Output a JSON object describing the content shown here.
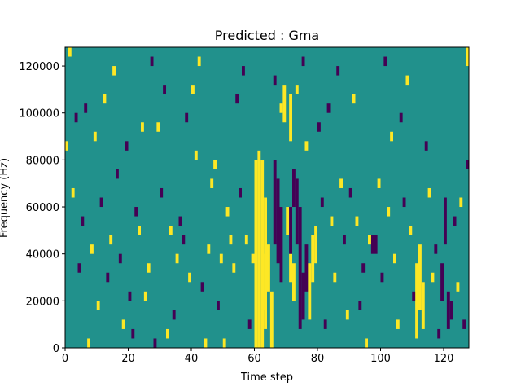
{
  "chart_data": {
    "type": "heatmap",
    "title": "Predicted : Gma",
    "xlabel": "Time step",
    "ylabel": "Frequency (Hz)",
    "xlim": [
      0,
      128
    ],
    "ylim": [
      0,
      128000
    ],
    "x_ticks": [
      0,
      20,
      40,
      60,
      80,
      100,
      120
    ],
    "y_ticks": [
      0,
      20000,
      40000,
      60000,
      80000,
      100000,
      120000
    ],
    "y_tick_labels": [
      "0",
      "20000",
      "40000",
      "60000",
      "80000",
      "100000",
      "120000"
    ],
    "grid": false,
    "colormap": "viridis",
    "colors": {
      "background": "#21918c",
      "high": "#fde725",
      "low": "#440154"
    },
    "value_levels": {
      "background": 0,
      "high": 1,
      "low": -1
    },
    "n_time_steps": 128,
    "n_frequency_bins": 32,
    "frequency_bin_width": 4000,
    "cells": [
      {
        "t": 60,
        "f0": 0,
        "f1": 80000,
        "v": 1
      },
      {
        "t": 61,
        "f0": 0,
        "f1": 84000,
        "v": 1
      },
      {
        "t": 62,
        "f0": 0,
        "f1": 80000,
        "v": 1
      },
      {
        "t": 63,
        "f0": 8000,
        "f1": 64000,
        "v": 1
      },
      {
        "t": 63,
        "f0": 16000,
        "f1": 40000,
        "v": 1
      },
      {
        "t": 64,
        "f0": 24000,
        "f1": 44000,
        "v": 1
      },
      {
        "t": 65,
        "f0": 0,
        "f1": 24000,
        "v": 1
      },
      {
        "t": 66,
        "f0": 44000,
        "f1": 80000,
        "v": -1
      },
      {
        "t": 67,
        "f0": 36000,
        "f1": 72000,
        "v": -1
      },
      {
        "t": 68,
        "f0": 28000,
        "f1": 60000,
        "v": -1
      },
      {
        "t": 70,
        "f0": 48000,
        "f1": 60000,
        "v": 1
      },
      {
        "t": 71,
        "f0": 28000,
        "f1": 40000,
        "v": 1
      },
      {
        "t": 72,
        "f0": 20000,
        "f1": 36000,
        "v": 1
      },
      {
        "t": 71,
        "f0": 40000,
        "f1": 60000,
        "v": -1
      },
      {
        "t": 72,
        "f0": 60000,
        "f1": 76000,
        "v": -1
      },
      {
        "t": 73,
        "f0": 44000,
        "f1": 72000,
        "v": -1
      },
      {
        "t": 74,
        "f0": 8000,
        "f1": 60000,
        "v": -1
      },
      {
        "t": 75,
        "f0": 12000,
        "f1": 32000,
        "v": -1
      },
      {
        "t": 76,
        "f0": 24000,
        "f1": 44000,
        "v": -1
      },
      {
        "t": 77,
        "f0": 12000,
        "f1": 36000,
        "v": 1
      },
      {
        "t": 78,
        "f0": 28000,
        "f1": 48000,
        "v": 1
      },
      {
        "t": 79,
        "f0": 36000,
        "f1": 52000,
        "v": 1
      },
      {
        "t": 71,
        "f0": 88000,
        "f1": 108000,
        "v": 1
      },
      {
        "t": 69,
        "f0": 96000,
        "f1": 112000,
        "v": 1
      },
      {
        "t": 111,
        "f0": 4000,
        "f1": 36000,
        "v": 1
      },
      {
        "t": 112,
        "f0": 16000,
        "f1": 44000,
        "v": 1
      },
      {
        "t": 113,
        "f0": 8000,
        "f1": 28000,
        "v": 1
      },
      {
        "t": 121,
        "f0": 8000,
        "f1": 24000,
        "v": -1
      },
      {
        "t": 122,
        "f0": 12000,
        "f1": 20000,
        "v": -1
      },
      {
        "t": 119,
        "f0": 20000,
        "f1": 36000,
        "v": -1
      },
      {
        "t": 120,
        "f0": 44000,
        "f1": 64000,
        "v": -1
      },
      {
        "t": 97,
        "f0": 40000,
        "f1": 48000,
        "v": -1
      },
      {
        "t": 98,
        "f0": 40000,
        "f1": 48000,
        "v": -1
      },
      {
        "t": 127,
        "f0": 76000,
        "f1": 80000,
        "v": -1
      },
      {
        "t": 127,
        "f0": 120000,
        "f1": 128000,
        "v": 1
      },
      {
        "t": 1,
        "f0": 124000,
        "f1": 128000,
        "v": 1
      },
      {
        "t": 3,
        "f0": 96000,
        "f1": 100000,
        "v": -1
      },
      {
        "t": 4,
        "f0": 32000,
        "f1": 36000,
        "v": -1
      },
      {
        "t": 7,
        "f0": 0,
        "f1": 4000,
        "v": 1
      },
      {
        "t": 10,
        "f0": 16000,
        "f1": 20000,
        "v": 1
      },
      {
        "t": 12,
        "f0": 104000,
        "f1": 108000,
        "v": 1
      },
      {
        "t": 16,
        "f0": 72000,
        "f1": 76000,
        "v": -1
      },
      {
        "t": 18,
        "f0": 8000,
        "f1": 12000,
        "v": 1
      },
      {
        "t": 20,
        "f0": 20000,
        "f1": 24000,
        "v": -1
      },
      {
        "t": 24,
        "f0": 92000,
        "f1": 96000,
        "v": 1
      },
      {
        "t": 27,
        "f0": 120000,
        "f1": 124000,
        "v": -1
      },
      {
        "t": 28,
        "f0": 0,
        "f1": 4000,
        "v": -1
      },
      {
        "t": 31,
        "f0": 108000,
        "f1": 112000,
        "v": -1
      },
      {
        "t": 33,
        "f0": 48000,
        "f1": 52000,
        "v": 1
      },
      {
        "t": 35,
        "f0": 36000,
        "f1": 40000,
        "v": 1
      },
      {
        "t": 37,
        "f0": 44000,
        "f1": 48000,
        "v": -1
      },
      {
        "t": 39,
        "f0": 28000,
        "f1": 32000,
        "v": 1
      },
      {
        "t": 41,
        "f0": 80000,
        "f1": 84000,
        "v": 1
      },
      {
        "t": 42,
        "f0": 120000,
        "f1": 124000,
        "v": 1
      },
      {
        "t": 44,
        "f0": 0,
        "f1": 4000,
        "v": 1
      },
      {
        "t": 46,
        "f0": 68000,
        "f1": 72000,
        "v": 1
      },
      {
        "t": 48,
        "f0": 16000,
        "f1": 20000,
        "v": -1
      },
      {
        "t": 49,
        "f0": 36000,
        "f1": 40000,
        "v": 1
      },
      {
        "t": 51,
        "f0": 56000,
        "f1": 60000,
        "v": 1
      },
      {
        "t": 54,
        "f0": 104000,
        "f1": 108000,
        "v": -1
      },
      {
        "t": 56,
        "f0": 116000,
        "f1": 120000,
        "v": -1
      },
      {
        "t": 57,
        "f0": 44000,
        "f1": 48000,
        "v": 1
      },
      {
        "t": 58,
        "f0": 8000,
        "f1": 12000,
        "v": -1
      },
      {
        "t": 66,
        "f0": 112000,
        "f1": 116000,
        "v": -1
      },
      {
        "t": 68,
        "f0": 100000,
        "f1": 104000,
        "v": 1
      },
      {
        "t": 73,
        "f0": 108000,
        "f1": 112000,
        "v": 1
      },
      {
        "t": 75,
        "f0": 120000,
        "f1": 124000,
        "v": -1
      },
      {
        "t": 76,
        "f0": 84000,
        "f1": 88000,
        "v": 1
      },
      {
        "t": 80,
        "f0": 92000,
        "f1": 96000,
        "v": -1
      },
      {
        "t": 82,
        "f0": 8000,
        "f1": 12000,
        "v": -1
      },
      {
        "t": 84,
        "f0": 52000,
        "f1": 56000,
        "v": 1
      },
      {
        "t": 85,
        "f0": 28000,
        "f1": 32000,
        "v": 1
      },
      {
        "t": 86,
        "f0": 116000,
        "f1": 120000,
        "v": -1
      },
      {
        "t": 87,
        "f0": 68000,
        "f1": 72000,
        "v": 1
      },
      {
        "t": 89,
        "f0": 12000,
        "f1": 16000,
        "v": 1
      },
      {
        "t": 91,
        "f0": 104000,
        "f1": 108000,
        "v": 1
      },
      {
        "t": 92,
        "f0": 52000,
        "f1": 56000,
        "v": 1
      },
      {
        "t": 94,
        "f0": 32000,
        "f1": 36000,
        "v": -1
      },
      {
        "t": 95,
        "f0": 0,
        "f1": 4000,
        "v": 1
      },
      {
        "t": 96,
        "f0": 44000,
        "f1": 48000,
        "v": 1
      },
      {
        "t": 99,
        "f0": 68000,
        "f1": 72000,
        "v": 1
      },
      {
        "t": 100,
        "f0": 28000,
        "f1": 32000,
        "v": -1
      },
      {
        "t": 101,
        "f0": 120000,
        "f1": 124000,
        "v": -1
      },
      {
        "t": 103,
        "f0": 88000,
        "f1": 92000,
        "v": 1
      },
      {
        "t": 105,
        "f0": 8000,
        "f1": 12000,
        "v": 1
      },
      {
        "t": 107,
        "f0": 60000,
        "f1": 64000,
        "v": -1
      },
      {
        "t": 108,
        "f0": 112000,
        "f1": 116000,
        "v": 1
      },
      {
        "t": 110,
        "f0": 20000,
        "f1": 24000,
        "v": -1
      },
      {
        "t": 115,
        "f0": 64000,
        "f1": 68000,
        "v": 1
      },
      {
        "t": 117,
        "f0": 40000,
        "f1": 44000,
        "v": -1
      },
      {
        "t": 118,
        "f0": 4000,
        "f1": 8000,
        "v": -1
      },
      {
        "t": 123,
        "f0": 52000,
        "f1": 56000,
        "v": -1
      },
      {
        "t": 124,
        "f0": 24000,
        "f1": 28000,
        "v": 1
      },
      {
        "t": 125,
        "f0": 60000,
        "f1": 64000,
        "v": 1
      },
      {
        "t": 126,
        "f0": 8000,
        "f1": 12000,
        "v": -1
      },
      {
        "t": 5,
        "f0": 52000,
        "f1": 56000,
        "v": -1
      },
      {
        "t": 9,
        "f0": 88000,
        "f1": 92000,
        "v": 1
      },
      {
        "t": 14,
        "f0": 44000,
        "f1": 48000,
        "v": 1
      },
      {
        "t": 22,
        "f0": 56000,
        "f1": 60000,
        "v": -1
      },
      {
        "t": 26,
        "f0": 32000,
        "f1": 36000,
        "v": 1
      },
      {
        "t": 30,
        "f0": 64000,
        "f1": 68000,
        "v": -1
      },
      {
        "t": 34,
        "f0": 12000,
        "f1": 16000,
        "v": -1
      },
      {
        "t": 38,
        "f0": 96000,
        "f1": 100000,
        "v": -1
      },
      {
        "t": 43,
        "f0": 24000,
        "f1": 28000,
        "v": -1
      },
      {
        "t": 45,
        "f0": 40000,
        "f1": 44000,
        "v": 1
      },
      {
        "t": 47,
        "f0": 76000,
        "f1": 80000,
        "v": 1
      },
      {
        "t": 50,
        "f0": 0,
        "f1": 4000,
        "v": 1
      },
      {
        "t": 53,
        "f0": 32000,
        "f1": 36000,
        "v": 1
      },
      {
        "t": 55,
        "f0": 64000,
        "f1": 68000,
        "v": -1
      },
      {
        "t": 2,
        "f0": 64000,
        "f1": 68000,
        "v": 1
      },
      {
        "t": 6,
        "f0": 100000,
        "f1": 104000,
        "v": -1
      },
      {
        "t": 11,
        "f0": 60000,
        "f1": 64000,
        "v": -1
      },
      {
        "t": 13,
        "f0": 28000,
        "f1": 32000,
        "v": -1
      },
      {
        "t": 15,
        "f0": 116000,
        "f1": 120000,
        "v": 1
      },
      {
        "t": 17,
        "f0": 36000,
        "f1": 40000,
        "v": -1
      },
      {
        "t": 19,
        "f0": 84000,
        "f1": 88000,
        "v": -1
      },
      {
        "t": 21,
        "f0": 4000,
        "f1": 8000,
        "v": -1
      },
      {
        "t": 23,
        "f0": 48000,
        "f1": 52000,
        "v": 1
      },
      {
        "t": 25,
        "f0": 20000,
        "f1": 24000,
        "v": 1
      },
      {
        "t": 29,
        "f0": 92000,
        "f1": 96000,
        "v": 1
      },
      {
        "t": 32,
        "f0": 4000,
        "f1": 8000,
        "v": 1
      },
      {
        "t": 36,
        "f0": 52000,
        "f1": 56000,
        "v": -1
      },
      {
        "t": 40,
        "f0": 108000,
        "f1": 112000,
        "v": 1
      },
      {
        "t": 52,
        "f0": 44000,
        "f1": 48000,
        "v": 1
      },
      {
        "t": 59,
        "f0": 36000,
        "f1": 40000,
        "v": 1
      },
      {
        "t": 81,
        "f0": 60000,
        "f1": 64000,
        "v": -1
      },
      {
        "t": 83,
        "f0": 100000,
        "f1": 104000,
        "v": -1
      },
      {
        "t": 88,
        "f0": 44000,
        "f1": 48000,
        "v": -1
      },
      {
        "t": 90,
        "f0": 64000,
        "f1": 68000,
        "v": -1
      },
      {
        "t": 93,
        "f0": 16000,
        "f1": 20000,
        "v": -1
      },
      {
        "t": 102,
        "f0": 56000,
        "f1": 60000,
        "v": 1
      },
      {
        "t": 104,
        "f0": 36000,
        "f1": 40000,
        "v": 1
      },
      {
        "t": 106,
        "f0": 96000,
        "f1": 100000,
        "v": -1
      },
      {
        "t": 109,
        "f0": 48000,
        "f1": 52000,
        "v": 1
      },
      {
        "t": 114,
        "f0": 84000,
        "f1": 88000,
        "v": -1
      },
      {
        "t": 116,
        "f0": 28000,
        "f1": 32000,
        "v": 1
      },
      {
        "t": 8,
        "f0": 40000,
        "f1": 44000,
        "v": 1
      },
      {
        "t": 0,
        "f0": 84000,
        "f1": 88000,
        "v": 1
      }
    ]
  }
}
